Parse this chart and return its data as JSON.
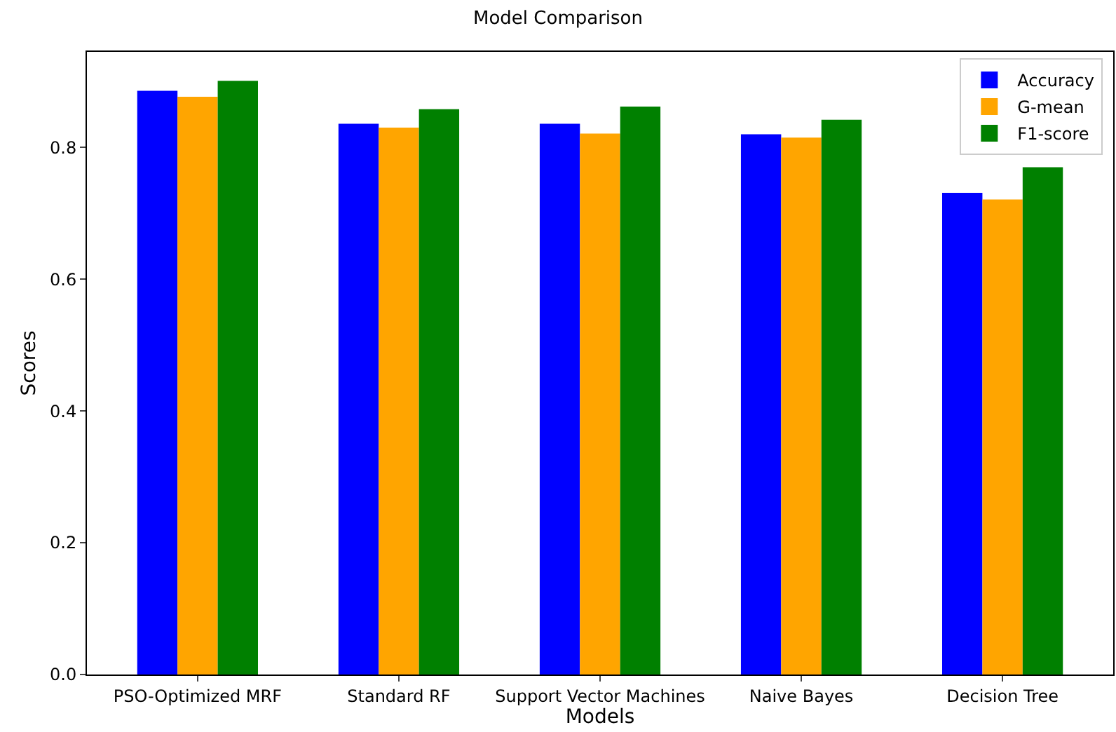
{
  "chart_data": {
    "type": "bar",
    "title": "Model Comparison",
    "xlabel": "Models",
    "ylabel": "Scores",
    "categories": [
      "PSO-Optimized MRF",
      "Standard RF",
      "Support Vector Machines",
      "Naive Bayes",
      "Decision Tree"
    ],
    "series": [
      {
        "name": "Accuracy",
        "color": "#0000ff",
        "values": [
          0.886,
          0.836,
          0.836,
          0.82,
          0.731
        ]
      },
      {
        "name": "G-mean",
        "color": "#ffa500",
        "values": [
          0.877,
          0.83,
          0.821,
          0.815,
          0.721
        ]
      },
      {
        "name": "F1-score",
        "color": "#008000",
        "values": [
          0.901,
          0.858,
          0.862,
          0.842,
          0.77
        ]
      }
    ],
    "ylim": [
      0,
      0.945
    ],
    "yticks": [
      {
        "value": 0,
        "label": "0.0"
      },
      {
        "value": 0.2,
        "label": "0.2"
      },
      {
        "value": 0.4,
        "label": "0.4"
      },
      {
        "value": 0.6,
        "label": "0.6"
      },
      {
        "value": 0.8,
        "label": "0.8"
      }
    ],
    "grid": false,
    "legend": "top right"
  }
}
